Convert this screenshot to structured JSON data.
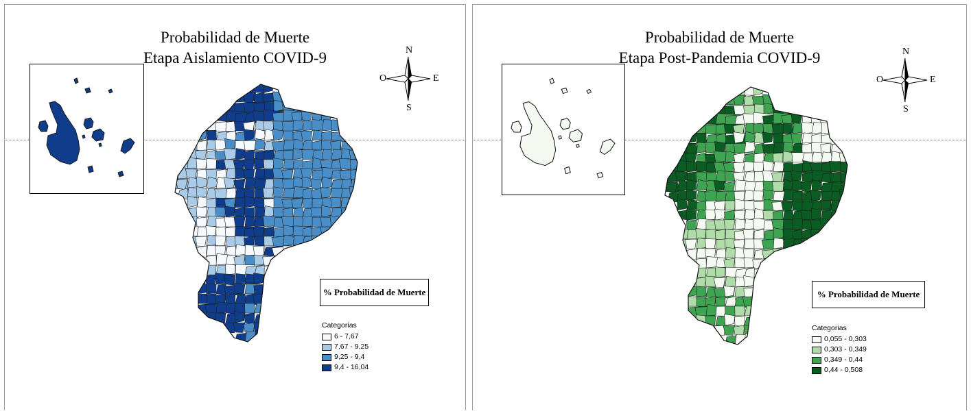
{
  "panels": [
    {
      "title_line1": "Probabilidad de Muerte",
      "title_line2": "Etapa Aislamiento COVID-9",
      "legend_header": "% Probabilidad de Muerte",
      "legend_title": "Categorias",
      "classes": [
        {
          "label": "6 - 7,67",
          "color": "#f5f8fc"
        },
        {
          "label": "7,67 - 9,25",
          "color": "#a9cbe8"
        },
        {
          "label": "9,25 - 9,4",
          "color": "#4a8ec8"
        },
        {
          "label": "9,4 - 16,04",
          "color": "#0f3d8c"
        }
      ],
      "galapagos_fill": "#0f3d8c"
    },
    {
      "title_line1": "Probabilidad de Muerte",
      "title_line2": "Etapa Post-Pandemia COVID-9",
      "legend_header": "% Probabilidad de Muerte",
      "legend_title": "Categorias",
      "classes": [
        {
          "label": "0,055 - 0,303",
          "color": "#f4faf1"
        },
        {
          "label": "0,303 - 0,349",
          "color": "#afdca8"
        },
        {
          "label": "0,349 - 0,44",
          "color": "#3ea452"
        },
        {
          "label": "0,44 - 0,508",
          "color": "#0a5c22"
        }
      ],
      "galapagos_fill": "#f4faf1"
    }
  ],
  "compass": {
    "north": "N",
    "south": "S",
    "east": "E",
    "west": "O"
  }
}
